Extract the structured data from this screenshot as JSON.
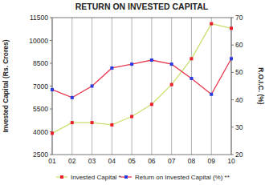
{
  "chart_data": {
    "type": "line",
    "title": "RETURN ON INVESTED CAPITAL",
    "categories": [
      "01",
      "02",
      "03",
      "04",
      "05",
      "06",
      "07",
      "08",
      "09",
      "10"
    ],
    "ylabel": "Invested Capital (Rs. Crores)",
    "y2label": "R.O.I.C. (%)",
    "ylim": [
      2500,
      11500
    ],
    "yticks": [
      2500,
      4000,
      5500,
      7000,
      8500,
      10000,
      11500
    ],
    "y2lim": [
      20,
      70
    ],
    "y2ticks": [
      20,
      30,
      40,
      50,
      60,
      70
    ],
    "grid": true,
    "legend": "bottom",
    "series": [
      {
        "name": "Invested Capital *",
        "color": "#c8e070",
        "marker": "square",
        "values": [
          3900,
          4600,
          4600,
          4450,
          5000,
          5800,
          7100,
          8800,
          11100,
          10800
        ]
      },
      {
        "name": "Return on Invested Capital (%) **",
        "color": "#e8384f",
        "marker": "square",
        "axis": "y2",
        "values": [
          43.7,
          40.8,
          45,
          51.6,
          53,
          54.5,
          53,
          47.8,
          42,
          55
        ]
      }
    ]
  }
}
